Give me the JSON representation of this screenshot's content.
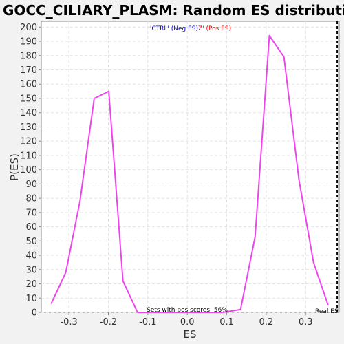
{
  "chart_data": {
    "type": "line",
    "title": "GOCC_CILIARY_PLASM: Random ES distribution",
    "xlabel": "ES",
    "ylabel": "P(ES)",
    "xlim": [
      -0.37,
      0.385
    ],
    "ylim": [
      0,
      204
    ],
    "x_ticks": [
      -0.3,
      -0.2,
      -0.1,
      0.0,
      0.1,
      0.2,
      0.3
    ],
    "x_tick_labels": [
      "-0.3",
      "-0.2",
      "-0.1",
      "0.0",
      "0.1",
      "0.2",
      "0.3"
    ],
    "y_ticks": [
      0,
      10,
      20,
      30,
      40,
      50,
      60,
      70,
      80,
      90,
      100,
      110,
      120,
      130,
      140,
      150,
      160,
      170,
      180,
      190,
      200
    ],
    "y_tick_labels": [
      "0",
      "10",
      "20",
      "30",
      "40",
      "50",
      "60",
      "70",
      "80",
      "90",
      "100",
      "110",
      "120",
      "130",
      "140",
      "150",
      "160",
      "170",
      "180",
      "190",
      "200"
    ],
    "grid": true,
    "series": [
      {
        "color": "#ee44ee",
        "x": [
          -0.345,
          -0.308,
          -0.272,
          -0.236,
          -0.199,
          -0.163,
          -0.126,
          -0.09,
          -0.054,
          -0.018,
          0.018,
          0.054,
          0.09,
          0.135,
          0.172,
          0.208,
          0.245,
          0.283,
          0.32,
          0.357
        ],
        "y": [
          6,
          28,
          78,
          150,
          155,
          22,
          0,
          0,
          0,
          0,
          0,
          0,
          0,
          2,
          53,
          194,
          179,
          93,
          35,
          5
        ]
      }
    ],
    "real_es": {
      "x": 0.38,
      "label": "Real ES",
      "color": "#000000"
    },
    "legend": {
      "neg_label": "'CTRL' (Neg ES)",
      "neg_color": "#0000cc",
      "pos_label": "Z' (Pos ES)",
      "pos_color": "#ee0000"
    },
    "annotation": "Sets with pos scores: 56%"
  }
}
